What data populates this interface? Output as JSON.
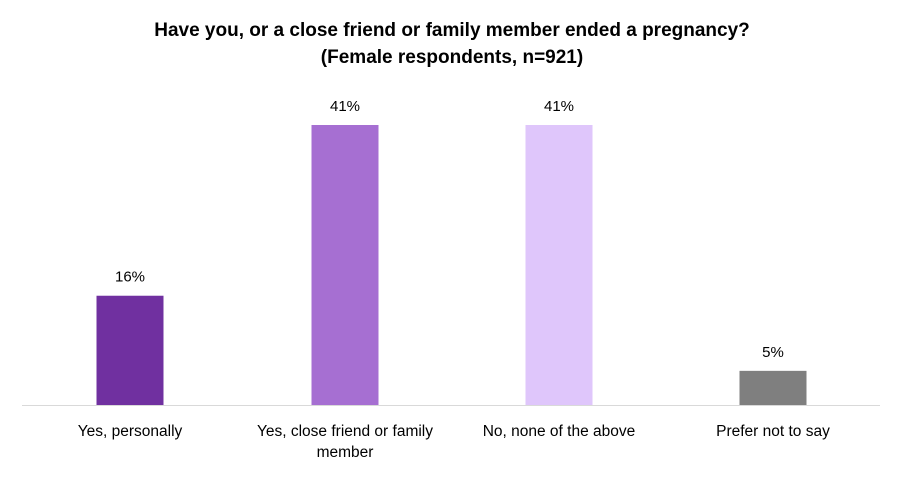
{
  "chart_data": {
    "type": "bar",
    "title": "Have you, or a close friend or family member ended a pregnancy?",
    "subtitle": "(Female respondents, n=921)",
    "categories": [
      "Yes, personally",
      "Yes, close friend or family member",
      "No, none of the above",
      "Prefer not to say"
    ],
    "values": [
      16,
      41,
      41,
      5
    ],
    "value_labels": [
      "16%",
      "41%",
      "41%",
      "5%"
    ],
    "colors": [
      "#7030A0",
      "#A66FD2",
      "#DFC6FB",
      "#7F7F7F"
    ],
    "ylim": [
      0,
      41
    ],
    "grid": false,
    "legend": "none"
  }
}
